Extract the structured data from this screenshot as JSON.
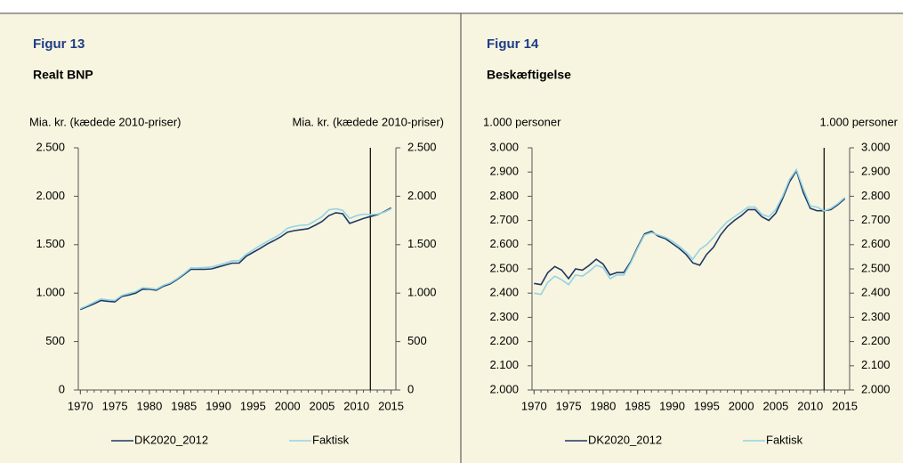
{
  "chart_data": [
    {
      "type": "line",
      "title": "Figur 13",
      "subtitle": "Realt BNP",
      "ylabel": "Mia. kr. (kædede 2010-priser)",
      "y2label": "Mia. kr. (kædede 2010-priser)",
      "x": [
        1970,
        1971,
        1972,
        1973,
        1974,
        1975,
        1976,
        1977,
        1978,
        1979,
        1980,
        1981,
        1982,
        1983,
        1984,
        1985,
        1986,
        1987,
        1988,
        1989,
        1990,
        1991,
        1992,
        1993,
        1994,
        1995,
        1996,
        1997,
        1998,
        1999,
        2000,
        2001,
        2002,
        2003,
        2004,
        2005,
        2006,
        2007,
        2008,
        2009,
        2010,
        2011,
        2012,
        2013,
        2014,
        2015
      ],
      "series": [
        {
          "name": "DK2020_2012",
          "color": "#1f3864",
          "values": [
            830,
            860,
            890,
            925,
            915,
            910,
            965,
            980,
            1000,
            1040,
            1040,
            1030,
            1070,
            1095,
            1140,
            1190,
            1245,
            1245,
            1245,
            1250,
            1270,
            1290,
            1310,
            1310,
            1380,
            1420,
            1460,
            1505,
            1540,
            1580,
            1630,
            1645,
            1655,
            1665,
            1700,
            1740,
            1800,
            1830,
            1820,
            1720,
            1745,
            1770,
            1790,
            1810,
            1840,
            1880
          ]
        },
        {
          "name": "Faktisk",
          "color": "#92d3e6",
          "values": [
            840,
            870,
            905,
            940,
            930,
            925,
            975,
            995,
            1015,
            1055,
            1050,
            1040,
            1080,
            1105,
            1150,
            1200,
            1260,
            1260,
            1265,
            1270,
            1290,
            1310,
            1335,
            1335,
            1400,
            1445,
            1490,
            1530,
            1570,
            1610,
            1670,
            1690,
            1700,
            1705,
            1745,
            1790,
            1860,
            1870,
            1855,
            1770,
            1800,
            1815,
            1810,
            1815,
            1835,
            1870
          ]
        }
      ],
      "xlim": [
        1969.7,
        2015.7
      ],
      "xticks": [
        1970,
        1975,
        1980,
        1985,
        1990,
        1995,
        2000,
        2005,
        2010,
        2015
      ],
      "ylim": [
        0,
        2500
      ],
      "yticks": [
        0,
        500,
        {
          "value": 1000,
          "label": "1.000"
        },
        {
          "value": 1500,
          "label": "1.500"
        },
        {
          "value": 2000,
          "label": "2.000"
        },
        {
          "value": 2500,
          "label": "2.500"
        }
      ],
      "y2lim": [
        0,
        2500
      ],
      "y2ticks": [
        0,
        500,
        {
          "value": 1000,
          "label": "1.000"
        },
        {
          "value": 1500,
          "label": "1.500"
        },
        {
          "value": 2000,
          "label": "2.000"
        },
        {
          "value": 2500,
          "label": "2.500"
        }
      ],
      "vline": 2012
    },
    {
      "type": "line",
      "title": "Figur 14",
      "subtitle": "Beskæftigelse",
      "ylabel": "1.000 personer",
      "y2label": "1.000 personer",
      "x": [
        1970,
        1971,
        1972,
        1973,
        1974,
        1975,
        1976,
        1977,
        1978,
        1979,
        1980,
        1981,
        1982,
        1983,
        1984,
        1985,
        1986,
        1987,
        1988,
        1989,
        1990,
        1991,
        1992,
        1993,
        1994,
        1995,
        1996,
        1997,
        1998,
        1999,
        2000,
        2001,
        2002,
        2003,
        2004,
        2005,
        2006,
        2007,
        2008,
        2009,
        2010,
        2011,
        2012,
        2013,
        2014,
        2015
      ],
      "series": [
        {
          "name": "DK2020_2012",
          "color": "#1f3864",
          "values": [
            2440,
            2435,
            2485,
            2510,
            2495,
            2460,
            2500,
            2495,
            2515,
            2540,
            2520,
            2475,
            2485,
            2485,
            2530,
            2590,
            2645,
            2655,
            2635,
            2625,
            2605,
            2585,
            2560,
            2525,
            2515,
            2560,
            2590,
            2640,
            2675,
            2700,
            2720,
            2745,
            2745,
            2715,
            2700,
            2730,
            2790,
            2860,
            2905,
            2815,
            2750,
            2740,
            2740,
            2745,
            2765,
            2790
          ]
        },
        {
          "name": "Faktisk",
          "color": "#92d3e6",
          "values": [
            2400,
            2395,
            2445,
            2470,
            2455,
            2435,
            2475,
            2470,
            2490,
            2515,
            2505,
            2460,
            2475,
            2475,
            2525,
            2585,
            2640,
            2650,
            2640,
            2630,
            2615,
            2595,
            2570,
            2540,
            2580,
            2600,
            2630,
            2665,
            2695,
            2715,
            2735,
            2755,
            2755,
            2725,
            2715,
            2745,
            2800,
            2870,
            2910,
            2830,
            2760,
            2755,
            2740,
            2750,
            2770,
            2795
          ]
        }
      ],
      "xlim": [
        1969.7,
        2015.7
      ],
      "xticks": [
        1970,
        1975,
        1980,
        1985,
        1990,
        1995,
        2000,
        2005,
        2010,
        2015
      ],
      "ylim": [
        2000,
        3000
      ],
      "yticks": [
        {
          "value": 2000,
          "label": "2.000"
        },
        {
          "value": 2100,
          "label": "2.100"
        },
        {
          "value": 2200,
          "label": "2.200"
        },
        {
          "value": 2300,
          "label": "2.300"
        },
        {
          "value": 2400,
          "label": "2.400"
        },
        {
          "value": 2500,
          "label": "2.500"
        },
        {
          "value": 2600,
          "label": "2.600"
        },
        {
          "value": 2700,
          "label": "2.700"
        },
        {
          "value": 2800,
          "label": "2.800"
        },
        {
          "value": 2900,
          "label": "2.900"
        },
        {
          "value": 3000,
          "label": "3.000"
        }
      ],
      "y2lim": [
        2000,
        3000
      ],
      "y2ticks": [
        {
          "value": 2000,
          "label": "2.000"
        },
        {
          "value": 2100,
          "label": "2.100"
        },
        {
          "value": 2200,
          "label": "2.200"
        },
        {
          "value": 2300,
          "label": "2.300"
        },
        {
          "value": 2400,
          "label": "2.400"
        },
        {
          "value": 2500,
          "label": "2.500"
        },
        {
          "value": 2600,
          "label": "2.600"
        },
        {
          "value": 2700,
          "label": "2.700"
        },
        {
          "value": 2800,
          "label": "2.800"
        },
        {
          "value": 2900,
          "label": "2.900"
        },
        {
          "value": 3000,
          "label": "3.000"
        }
      ],
      "vline": 2012
    }
  ]
}
